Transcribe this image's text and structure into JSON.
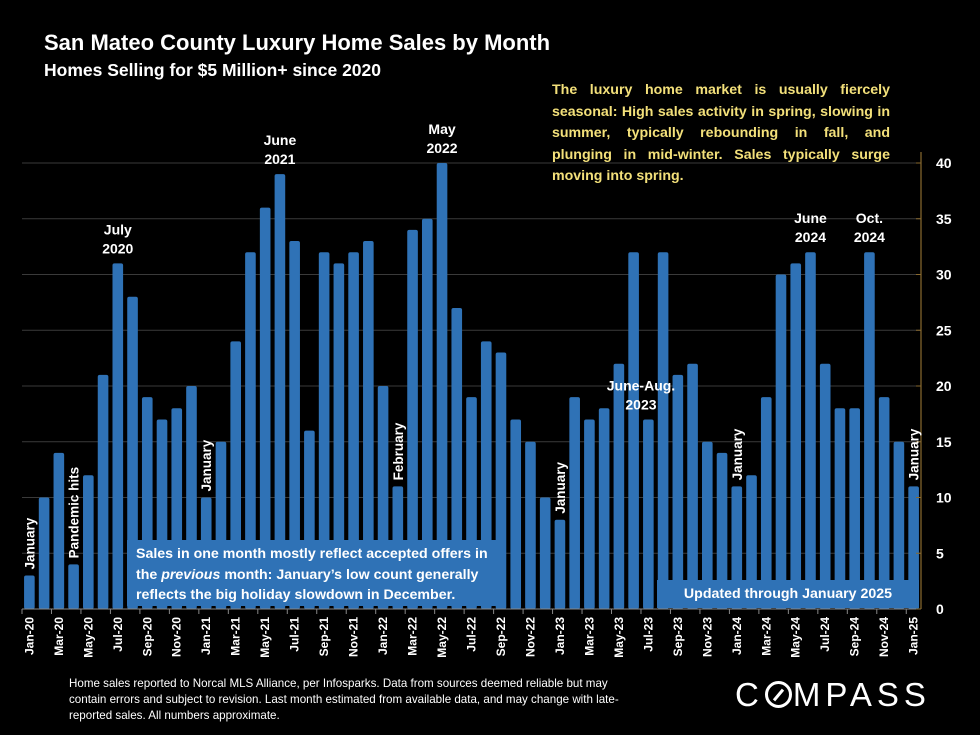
{
  "header": {
    "title": "San Mateo County Luxury Home Sales by Month",
    "subtitle": "Homes Selling for $5 Million+ since 2020"
  },
  "notes": {
    "seasonal": "The luxury home market is usually fiercely seasonal:  High sales activity in spring, slowing in summer, typically rebounding in fall, and plunging in mid-winter. Sales typically surge moving into spring.",
    "offers_line1": "Sales in one month mostly reflect accepted offers in",
    "offers_line2_pre": "the ",
    "offers_line2_em": "previous",
    "offers_line2_post": " month:  January’s low count generally",
    "offers_line3": "reflects the big holiday slowdown in December.",
    "updated": "Updated through January 2025"
  },
  "footer": {
    "footnote": "Home sales reported to Norcal MLS Alliance, per Infosparks. Data from sources deemed reliable but may contain errors and subject to revision.  Last month estimated from available data, and may change with late-reported sales. All numbers approximate.",
    "logo_pre": "C",
    "logo_post": "MPASS"
  },
  "colors": {
    "bar": "#2f72b6",
    "note_text": "#f3e07a",
    "background": "#000000",
    "axis": "#8a6a2e",
    "grid": "#3a3a3a"
  },
  "chart_data": {
    "type": "bar",
    "title": "San Mateo County Luxury Home Sales by Month",
    "subtitle": "Homes Selling for $5 Million+ since 2020",
    "xlabel": "",
    "ylabel": "",
    "ylim": [
      0,
      40
    ],
    "yticks": [
      0,
      5,
      10,
      15,
      20,
      25,
      30,
      35,
      40
    ],
    "y_axis_side": "right",
    "grid": true,
    "categories": [
      "Jan-20",
      "Feb-20",
      "Mar-20",
      "Apr-20",
      "May-20",
      "Jun-20",
      "Jul-20",
      "Aug-20",
      "Sep-20",
      "Oct-20",
      "Nov-20",
      "Dec-20",
      "Jan-21",
      "Feb-21",
      "Mar-21",
      "Apr-21",
      "May-21",
      "Jun-21",
      "Jul-21",
      "Aug-21",
      "Sep-21",
      "Oct-21",
      "Nov-21",
      "Dec-21",
      "Jan-22",
      "Feb-22",
      "Mar-22",
      "Apr-22",
      "May-22",
      "Jun-22",
      "Jul-22",
      "Aug-22",
      "Sep-22",
      "Oct-22",
      "Nov-22",
      "Dec-22",
      "Jan-23",
      "Feb-23",
      "Mar-23",
      "Apr-23",
      "May-23",
      "Jun-23",
      "Jul-23",
      "Aug-23",
      "Sep-23",
      "Oct-23",
      "Nov-23",
      "Dec-23",
      "Jan-24",
      "Feb-24",
      "Mar-24",
      "Apr-24",
      "May-24",
      "Jun-24",
      "Jul-24",
      "Aug-24",
      "Sep-24",
      "Oct-24",
      "Nov-24",
      "Dec-24",
      "Jan-25"
    ],
    "values": [
      3,
      10,
      14,
      4,
      12,
      21,
      31,
      28,
      19,
      17,
      18,
      20,
      10,
      15,
      24,
      32,
      36,
      39,
      33,
      16,
      32,
      31,
      32,
      33,
      20,
      11,
      34,
      35,
      40,
      27,
      19,
      24,
      23,
      17,
      15,
      10,
      8,
      19,
      17,
      18,
      22,
      32,
      17,
      32,
      21,
      22,
      15,
      14,
      11,
      12,
      19,
      30,
      31,
      32,
      22,
      18,
      18,
      32,
      19,
      15,
      11
    ],
    "tick_label_every": 2,
    "annotations": [
      {
        "index": 0,
        "text": "January",
        "orientation": "vertical"
      },
      {
        "index": 3,
        "text": "Pandemic hits",
        "orientation": "vertical"
      },
      {
        "index": 6,
        "text": "July\n2020",
        "orientation": "horizontal"
      },
      {
        "index": 12,
        "text": "January",
        "orientation": "vertical"
      },
      {
        "index": 17,
        "text": "June\n2021",
        "orientation": "horizontal"
      },
      {
        "index": 25,
        "text": "February",
        "orientation": "vertical"
      },
      {
        "index": 28,
        "text": "May\n2022",
        "orientation": "horizontal"
      },
      {
        "index": 36,
        "text": "January",
        "orientation": "vertical"
      },
      {
        "index": 42,
        "text": "June-Aug.\n2023",
        "orientation": "horizontal"
      },
      {
        "index": 48,
        "text": "January",
        "orientation": "vertical"
      },
      {
        "index": 53,
        "text": "June\n2024",
        "orientation": "horizontal"
      },
      {
        "index": 57,
        "text": "Oct.\n2024",
        "orientation": "horizontal"
      },
      {
        "index": 60,
        "text": "January",
        "orientation": "vertical"
      }
    ]
  }
}
